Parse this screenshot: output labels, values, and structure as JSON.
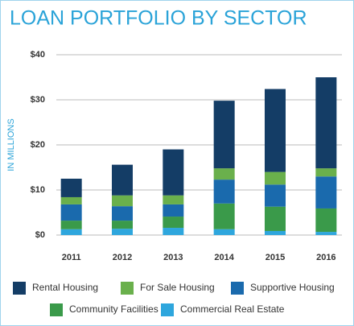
{
  "chart_data": {
    "type": "stacked-bar",
    "title": "LOAN PORTFOLIO BY SECTOR",
    "y_label": "IN MILLIONS",
    "categories": [
      "2011",
      "2012",
      "2013",
      "2014",
      "2015",
      "2016"
    ],
    "series": [
      {
        "name": "Rental Housing",
        "color": "#143d66",
        "values": [
          4.1,
          6.8,
          10.2,
          15.0,
          18.4,
          20.2
        ]
      },
      {
        "name": "For Sale Housing",
        "color": "#6ab04c",
        "values": [
          1.6,
          2.4,
          2.0,
          2.5,
          2.8,
          1.8
        ]
      },
      {
        "name": "Supportive Housing",
        "color": "#1a6aad",
        "values": [
          3.6,
          3.2,
          2.7,
          5.3,
          4.9,
          7.1
        ]
      },
      {
        "name": "Community Facilities",
        "color": "#3a9a4a",
        "values": [
          1.9,
          1.8,
          2.5,
          5.7,
          5.4,
          5.2
        ]
      },
      {
        "name": "Commercial Real Estate",
        "color": "#2ea6dd",
        "values": [
          1.3,
          1.4,
          1.6,
          1.3,
          0.9,
          0.7
        ]
      }
    ],
    "ylim": [
      0,
      40
    ],
    "yticks": [
      {
        "value": 0,
        "label": "$0"
      },
      {
        "value": 10,
        "label": "$10"
      },
      {
        "value": 20,
        "label": "$20"
      },
      {
        "value": 30,
        "label": "$30"
      },
      {
        "value": 40,
        "label": "$40"
      }
    ],
    "grid": true
  }
}
